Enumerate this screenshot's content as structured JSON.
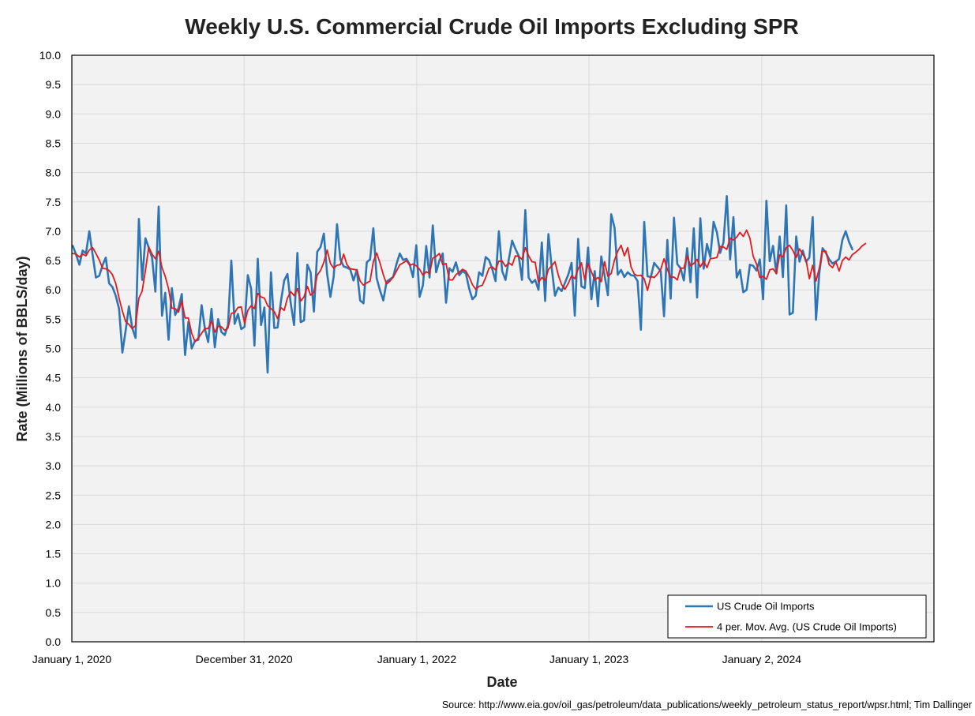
{
  "chart_data": {
    "type": "line",
    "title": "Weekly U.S. Commercial Crude Oil Imports Excluding SPR",
    "xlabel": "Date",
    "ylabel": "Rate (Millions of BBLS/day)",
    "ylim": [
      0,
      10
    ],
    "y_ticks": [
      "0.0",
      "0.5",
      "1.0",
      "1.5",
      "2.0",
      "2.5",
      "3.0",
      "3.5",
      "4.0",
      "4.5",
      "5.0",
      "5.5",
      "6.0",
      "6.5",
      "7.0",
      "7.5",
      "8.0",
      "8.5",
      "9.0",
      "9.5",
      "10.0"
    ],
    "x_range": [
      "2020-01-01",
      "2025-01-01"
    ],
    "x_ticks": [
      {
        "date": "2020-01-01",
        "label": "January 1, 2020"
      },
      {
        "date": "2020-12-31",
        "label": "December 31, 2020"
      },
      {
        "date": "2022-01-01",
        "label": "January 1, 2022"
      },
      {
        "date": "2023-01-01",
        "label": "January 1, 2023"
      },
      {
        "date": "2024-01-02",
        "label": "January 2, 2024"
      }
    ],
    "grid": true,
    "legend_position": "bottom-right",
    "series": [
      {
        "name": "US Crude Oil Imports",
        "color": "#2e75b6",
        "start_date": "2020-01-03",
        "step_days": 7,
        "values": [
          6.75,
          6.6,
          6.43,
          6.67,
          6.62,
          7.0,
          6.6,
          6.21,
          6.24,
          6.42,
          6.55,
          6.11,
          6.05,
          5.9,
          5.68,
          4.93,
          5.3,
          5.72,
          5.35,
          5.18,
          7.21,
          6.17,
          6.88,
          6.72,
          6.55,
          5.97,
          7.42,
          5.56,
          5.95,
          5.15,
          6.03,
          5.57,
          5.69,
          5.93,
          4.89,
          5.45,
          5.0,
          5.13,
          5.15,
          5.74,
          5.33,
          5.11,
          5.68,
          5.02,
          5.5,
          5.28,
          5.23,
          5.4,
          6.5,
          5.42,
          5.59,
          5.33,
          5.37,
          6.25,
          6.02,
          5.05,
          6.53,
          5.4,
          5.7,
          4.59,
          6.3,
          5.35,
          5.36,
          5.8,
          6.16,
          6.27,
          5.77,
          5.4,
          6.63,
          5.45,
          5.48,
          6.43,
          6.3,
          5.63,
          6.65,
          6.73,
          6.96,
          6.27,
          5.88,
          6.23,
          7.12,
          6.52,
          6.4,
          6.38,
          6.35,
          6.16,
          6.34,
          5.82,
          5.77,
          6.47,
          6.52,
          7.05,
          6.2,
          5.99,
          5.82,
          6.14,
          6.18,
          6.22,
          6.44,
          6.62,
          6.51,
          6.53,
          6.43,
          6.22,
          6.76,
          5.88,
          6.08,
          6.75,
          6.21,
          7.1,
          6.3,
          6.5,
          6.62,
          5.78,
          6.37,
          6.31,
          6.47,
          6.25,
          6.32,
          6.28,
          6.02,
          5.84,
          5.9,
          6.3,
          6.24,
          6.56,
          6.51,
          6.35,
          6.15,
          7.0,
          6.32,
          6.17,
          6.52,
          6.84,
          6.7,
          6.58,
          6.17,
          7.36,
          6.21,
          6.12,
          6.17,
          6.0,
          6.81,
          5.81,
          6.95,
          6.37,
          5.9,
          6.04,
          5.98,
          6.12,
          6.26,
          6.46,
          5.56,
          6.87,
          6.06,
          6.03,
          6.72,
          5.84,
          6.32,
          5.72,
          6.57,
          6.25,
          5.91,
          7.29,
          7.06,
          6.26,
          6.34,
          6.22,
          6.3,
          6.25,
          6.24,
          6.15,
          5.32,
          7.16,
          6.23,
          6.22,
          6.46,
          6.39,
          6.32,
          5.55,
          6.85,
          5.85,
          7.23,
          6.44,
          6.37,
          6.16,
          6.71,
          6.13,
          7.05,
          5.87,
          7.22,
          6.36,
          6.78,
          6.56,
          7.16,
          6.98,
          6.63,
          6.81,
          7.6,
          6.52,
          7.24,
          6.21,
          6.34,
          5.96,
          6.0,
          6.43,
          6.41,
          6.33,
          6.52,
          5.84,
          7.52,
          6.49,
          6.75,
          6.28,
          6.91,
          6.22,
          7.44,
          5.58,
          5.61,
          6.91,
          6.48,
          6.67,
          6.48,
          6.55,
          7.24,
          5.49,
          6.29,
          6.71,
          6.63,
          6.52,
          6.45,
          6.48,
          6.53,
          6.85,
          7.0,
          6.82,
          6.69
        ]
      },
      {
        "name": "4 per. Mov. Avg. (US Crude Oil Imports)",
        "color": "#e31a1c",
        "start_date": "2020-01-03",
        "step_days": 7,
        "values": [
          6.62,
          6.61,
          6.56,
          6.61,
          6.58,
          6.68,
          6.72,
          6.62,
          6.51,
          6.37,
          6.36,
          6.33,
          6.26,
          6.11,
          5.86,
          5.64,
          5.46,
          5.41,
          5.34,
          5.39,
          5.86,
          5.98,
          6.33,
          6.73,
          6.61,
          6.53,
          6.66,
          6.38,
          6.23,
          6.02,
          5.69,
          5.68,
          5.62,
          5.81,
          5.52,
          5.52,
          5.26,
          5.12,
          5.18,
          5.26,
          5.34,
          5.34,
          5.47,
          5.28,
          5.38,
          5.37,
          5.31,
          5.35,
          5.6,
          5.61,
          5.7,
          5.71,
          5.43,
          5.65,
          5.73,
          5.68,
          5.94,
          5.88,
          5.86,
          5.73,
          5.68,
          5.63,
          5.51,
          5.7,
          5.65,
          5.86,
          5.97,
          5.9,
          6.02,
          5.81,
          5.88,
          6.06,
          5.91,
          5.96,
          6.25,
          6.33,
          6.47,
          6.68,
          6.45,
          6.37,
          6.42,
          6.43,
          6.61,
          6.43,
          6.36,
          6.35,
          6.34,
          6.15,
          6.08,
          6.12,
          6.15,
          6.48,
          6.63,
          6.46,
          6.26,
          6.1,
          6.15,
          6.22,
          6.32,
          6.43,
          6.46,
          6.5,
          6.42,
          6.44,
          6.41,
          6.35,
          6.25,
          6.31,
          6.28,
          6.54,
          6.57,
          6.62,
          6.43,
          6.45,
          6.17,
          6.17,
          6.26,
          6.3,
          6.35,
          6.32,
          6.22,
          6.09,
          6.01,
          6.06,
          6.08,
          6.21,
          6.37,
          6.39,
          6.34,
          6.49,
          6.49,
          6.4,
          6.46,
          6.42,
          6.58,
          6.57,
          6.52,
          6.72,
          6.58,
          6.48,
          6.47,
          6.13,
          6.21,
          6.16,
          6.35,
          6.41,
          6.48,
          6.25,
          6.09,
          6.01,
          6.11,
          6.24,
          6.19,
          6.36,
          6.46,
          6.17,
          6.45,
          6.31,
          6.17,
          6.21,
          6.14,
          6.48,
          6.23,
          6.28,
          6.51,
          6.66,
          6.76,
          6.58,
          6.72,
          6.39,
          6.27,
          6.24,
          6.25,
          6.19,
          5.99,
          6.23,
          6.21,
          6.27,
          6.35,
          6.53,
          6.35,
          6.21,
          6.22,
          6.17,
          6.37,
          6.37,
          6.58,
          6.41,
          6.45,
          6.52,
          6.39,
          6.49,
          6.38,
          6.53,
          6.54,
          6.55,
          6.74,
          6.73,
          6.69,
          6.88,
          6.85,
          6.9,
          6.98,
          6.91,
          7.02,
          6.88,
          6.57,
          6.44,
          6.21,
          6.23,
          6.18,
          6.34,
          6.36,
          6.28,
          6.6,
          6.56,
          6.72,
          6.76,
          6.67,
          6.55,
          6.7,
          6.61,
          6.51,
          6.19,
          6.42,
          6.15,
          6.37,
          6.66,
          6.66,
          6.43,
          6.38,
          6.48,
          6.32,
          6.5,
          6.56,
          6.51,
          6.6,
          6.64,
          6.69,
          6.75,
          6.79
        ]
      }
    ],
    "source": "Source: http://www.eia.gov/oil_gas/petroleum/data_publications/weekly_petroleum_status_report/wpsr.html; Tim Dallinger"
  }
}
